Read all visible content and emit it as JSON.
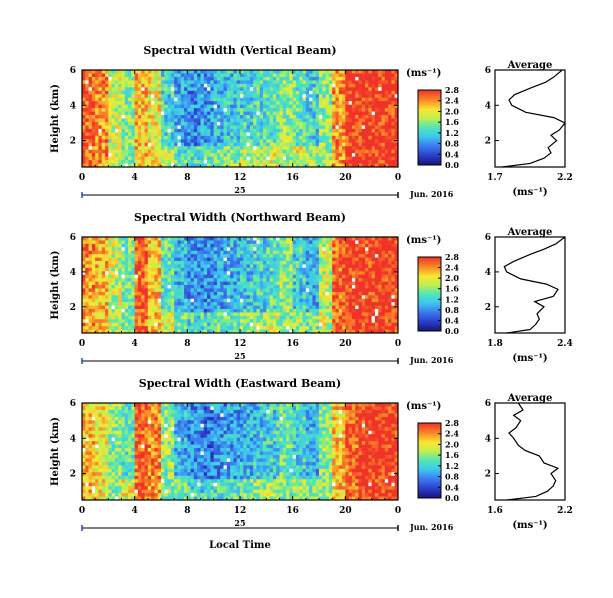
{
  "figure": {
    "date_label": "Jun. 2016",
    "date_day": "25",
    "xlabel_bottom": "Local Time",
    "colorbar_unit": "(ms⁻¹)",
    "average_xlabel": "(ms⁻¹)",
    "average_title": "Average",
    "ylabel": "Height (km)"
  },
  "chart_data": [
    {
      "type": "heatmap",
      "title": "Spectral Width (Vertical Beam)",
      "ylabel": "Height (km)",
      "x_ticks": [
        "0",
        "4",
        "8",
        "12",
        "16",
        "20",
        "0"
      ],
      "y_ticks": [
        "2",
        "4",
        "6"
      ],
      "xlim": [
        0,
        24
      ],
      "ylim": [
        0.5,
        6
      ],
      "colorbar": {
        "ticks": [
          "0.0",
          "0.4",
          "0.8",
          "1.2",
          "1.6",
          "2.0",
          "2.4",
          "2.8"
        ],
        "range": [
          0,
          2.8
        ]
      },
      "time_columns": [
        0,
        1,
        2,
        3,
        4,
        5,
        6,
        7,
        8,
        9,
        10,
        11,
        12,
        13,
        14,
        15,
        16,
        17,
        18,
        19,
        20,
        21,
        22,
        23
      ],
      "profile_by_hour": [
        2.6,
        2.4,
        1.8,
        1.6,
        2.2,
        2.0,
        1.2,
        0.9,
        0.8,
        0.9,
        1.0,
        1.1,
        1.2,
        1.3,
        1.4,
        1.6,
        1.4,
        1.2,
        1.6,
        2.4,
        2.8,
        2.8,
        2.8,
        2.8
      ],
      "average": {
        "title": "Average",
        "xlim": [
          1.7,
          2.2
        ],
        "x_ticks": [
          "1.7",
          "2.2"
        ],
        "y_ticks": [
          "2",
          "4",
          "6"
        ],
        "heights": [
          0.5,
          0.7,
          1.0,
          1.3,
          1.6,
          2.0,
          2.3,
          2.6,
          3.0,
          3.3,
          3.6,
          4.0,
          4.3,
          4.6,
          5.0,
          5.3,
          5.6,
          6.0
        ],
        "values": [
          1.75,
          1.95,
          2.05,
          2.1,
          2.08,
          2.14,
          2.1,
          2.16,
          2.2,
          2.12,
          1.92,
          1.82,
          1.8,
          1.84,
          1.96,
          2.06,
          2.12,
          2.18
        ]
      }
    },
    {
      "type": "heatmap",
      "title": "Spectral Width (Northward Beam)",
      "ylabel": "Height (km)",
      "x_ticks": [
        "0",
        "4",
        "8",
        "12",
        "16",
        "20",
        "0"
      ],
      "y_ticks": [
        "2",
        "4",
        "6"
      ],
      "xlim": [
        0,
        24
      ],
      "ylim": [
        0.5,
        6
      ],
      "colorbar": {
        "ticks": [
          "0.0",
          "0.4",
          "0.8",
          "1.2",
          "1.6",
          "2.0",
          "2.4",
          "2.8"
        ],
        "range": [
          0,
          2.8
        ]
      },
      "time_columns": [
        0,
        1,
        2,
        3,
        4,
        5,
        6,
        7,
        8,
        9,
        10,
        11,
        12,
        13,
        14,
        15,
        16,
        17,
        18,
        19,
        20,
        21,
        22,
        23
      ],
      "profile_by_hour": [
        2.4,
        2.2,
        1.8,
        1.5,
        2.6,
        2.2,
        1.4,
        1.0,
        0.8,
        0.8,
        0.9,
        1.0,
        1.1,
        1.2,
        1.3,
        1.6,
        1.2,
        1.0,
        1.8,
        2.6,
        2.8,
        2.8,
        2.8,
        2.8
      ],
      "average": {
        "title": "Average",
        "xlim": [
          1.8,
          2.4
        ],
        "x_ticks": [
          "1.8",
          "2.4"
        ],
        "y_ticks": [
          "2",
          "4",
          "6"
        ],
        "heights": [
          0.5,
          0.7,
          1.0,
          1.3,
          1.6,
          2.0,
          2.3,
          2.6,
          3.0,
          3.3,
          3.6,
          4.0,
          4.3,
          4.6,
          5.0,
          5.3,
          5.6,
          6.0
        ],
        "values": [
          1.9,
          2.1,
          2.15,
          2.18,
          2.16,
          2.22,
          2.14,
          2.3,
          2.34,
          2.24,
          2.02,
          1.9,
          1.88,
          1.96,
          2.1,
          2.22,
          2.32,
          2.4
        ]
      }
    },
    {
      "type": "heatmap",
      "title": "Spectral Width (Eastward Beam)",
      "ylabel": "Height (km)",
      "x_ticks": [
        "0",
        "4",
        "8",
        "12",
        "16",
        "20",
        "0"
      ],
      "y_ticks": [
        "2",
        "4",
        "6"
      ],
      "xlim": [
        0,
        24
      ],
      "ylim": [
        0.5,
        6
      ],
      "colorbar": {
        "ticks": [
          "0.0",
          "0.4",
          "0.8",
          "1.2",
          "1.6",
          "2.0",
          "2.4",
          "2.8"
        ],
        "range": [
          0,
          2.8
        ]
      },
      "time_columns": [
        0,
        1,
        2,
        3,
        4,
        5,
        6,
        7,
        8,
        9,
        10,
        11,
        12,
        13,
        14,
        15,
        16,
        17,
        18,
        19,
        20,
        21,
        22,
        23
      ],
      "profile_by_hour": [
        2.2,
        2.0,
        1.6,
        1.4,
        2.6,
        2.4,
        1.6,
        1.0,
        0.8,
        0.7,
        0.8,
        0.9,
        1.0,
        1.1,
        1.2,
        1.5,
        1.2,
        1.0,
        1.6,
        2.2,
        2.6,
        2.8,
        2.8,
        2.8
      ],
      "average": {
        "title": "Average",
        "xlim": [
          1.6,
          2.2
        ],
        "x_ticks": [
          "1.6",
          "2.2"
        ],
        "y_ticks": [
          "2",
          "4",
          "6"
        ],
        "heights": [
          0.5,
          0.7,
          1.0,
          1.3,
          1.6,
          2.0,
          2.3,
          2.6,
          3.0,
          3.3,
          3.6,
          4.0,
          4.3,
          4.6,
          5.0,
          5.3,
          5.6,
          6.0
        ],
        "values": [
          1.7,
          1.95,
          2.05,
          2.1,
          2.12,
          2.08,
          2.14,
          2.02,
          1.98,
          1.86,
          1.8,
          1.76,
          1.72,
          1.78,
          1.82,
          1.76,
          1.84,
          1.8
        ]
      }
    }
  ]
}
